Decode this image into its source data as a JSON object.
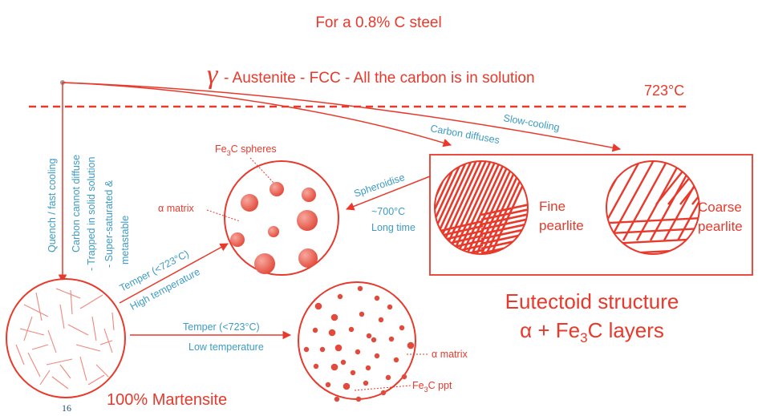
{
  "title": "For a 0.8% C steel",
  "austenite": {
    "symbol": "γ",
    "label": " - Austenite - FCC - All the carbon is in solution",
    "temperature": "723°C"
  },
  "quench": {
    "label": "Quench / fast cooling",
    "note_line1": "Carbon cannot diffuse",
    "note_line2": "- Trapped in solid solution",
    "note_line3": "- Super-saturated &",
    "note_line4": "metastable"
  },
  "paths": {
    "carbon_diffuses": "Carbon diffuses",
    "slow_cooling": "Slow-cooling"
  },
  "spheroidise": {
    "line1": "Spheroidise",
    "line2": "~700°C",
    "line3": "Long time"
  },
  "spheroidite": {
    "label_spheres_main": "Fe",
    "label_spheres_sub": "3",
    "label_spheres_rest": "C spheres",
    "label_matrix": "α matrix"
  },
  "pearlite": {
    "fine_line1": "Fine",
    "fine_line2": "pearlite",
    "coarse_line1": "Coarse",
    "coarse_line2": "pearlite"
  },
  "eutectoid": {
    "line1": "Eutectoid structure",
    "line2_main": "α + Fe",
    "line2_sub": "3",
    "line2_rest": "C layers"
  },
  "temper_high": {
    "line1": "Temper (<723°C)",
    "line2": "High temperature"
  },
  "temper_low": {
    "line1": "Temper (<723°C)",
    "line2": "Low temperature"
  },
  "tempered": {
    "label_matrix": "α matrix",
    "label_ppt_main": "Fe",
    "label_ppt_sub": "3",
    "label_ppt_rest": "C ppt"
  },
  "martensite_label": "100% Martensite",
  "page_number": "16",
  "colors": {
    "accent": "#e8392b",
    "annotation": "#3d9bc4",
    "page_number": "#1f4e79"
  }
}
